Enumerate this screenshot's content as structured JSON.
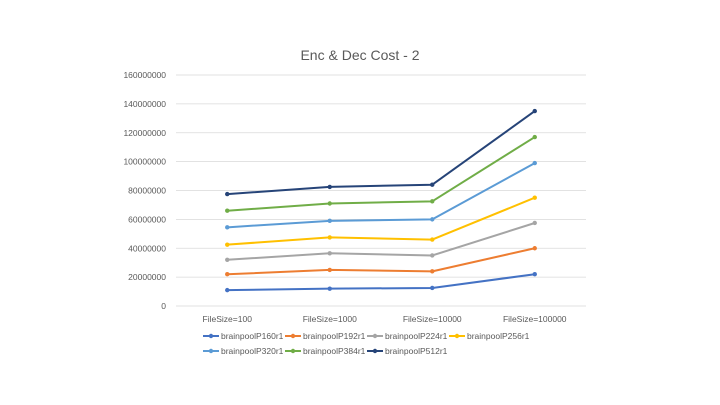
{
  "chart_data": {
    "type": "line",
    "title": "Enc & Dec Cost - 2",
    "xlabel": "",
    "ylabel": "",
    "categories": [
      "FileSize=100",
      "FileSize=1000",
      "FileSize=10000",
      "FileSize=100000"
    ],
    "ylim": [
      0,
      160000000
    ],
    "yticks": [
      0,
      20000000,
      40000000,
      60000000,
      80000000,
      100000000,
      120000000,
      140000000,
      160000000
    ],
    "ytick_labels": [
      "0",
      "20000000",
      "40000000",
      "60000000",
      "80000000",
      "100000000",
      "120000000",
      "140000000",
      "160000000"
    ],
    "grid": true,
    "legend_position": "bottom",
    "series": [
      {
        "name": "brainpoolP160r1",
        "color": "#4472C4",
        "values": [
          11000000,
          12000000,
          12500000,
          22000000
        ]
      },
      {
        "name": "brainpoolP192r1",
        "color": "#ED7D31",
        "values": [
          22000000,
          25000000,
          24000000,
          40000000
        ]
      },
      {
        "name": "brainpoolP224r1",
        "color": "#A5A5A5",
        "values": [
          32000000,
          36500000,
          35000000,
          57500000
        ]
      },
      {
        "name": "brainpoolP256r1",
        "color": "#FFC000",
        "values": [
          42500000,
          47500000,
          46000000,
          75000000
        ]
      },
      {
        "name": "brainpoolP320r1",
        "color": "#5B9BD5",
        "values": [
          54500000,
          59000000,
          60000000,
          99000000
        ]
      },
      {
        "name": "brainpoolP384r1",
        "color": "#70AD47",
        "values": [
          66000000,
          71000000,
          72500000,
          117000000
        ]
      },
      {
        "name": "brainpoolP512r1",
        "color": "#264478",
        "values": [
          77500000,
          82500000,
          84000000,
          135000000
        ]
      }
    ]
  }
}
